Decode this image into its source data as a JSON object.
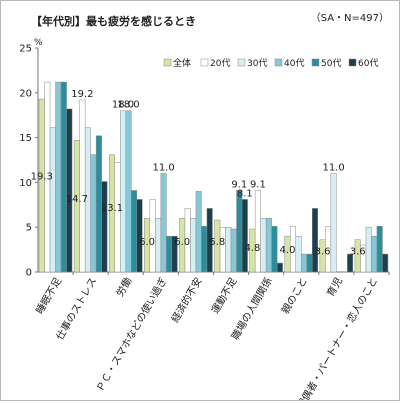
{
  "chart_data": {
    "type": "bar",
    "title": "【年代別】最も疲労を感じるとき",
    "note": "（SA・N=497）",
    "ylabel": "%",
    "ylim": [
      0,
      25
    ],
    "yticks": [
      0,
      5,
      10,
      15,
      20,
      25
    ],
    "grid": false,
    "legend": "top-right",
    "categories": [
      "睡眠不足",
      "仕事のストレス",
      "労働",
      "ＰＣ・スマホなどの使い過ぎ",
      "経済的不安",
      "運動不足",
      "職場の人間関係",
      "親のこと",
      "育児",
      "配偶者・パートナー・恋人のこと"
    ],
    "series": [
      {
        "name": "全体",
        "color": "#d7e4a6",
        "values": [
          19.3,
          14.7,
          13.1,
          6.0,
          6.0,
          5.8,
          4.8,
          4.0,
          3.6,
          3.6
        ]
      },
      {
        "name": "20代",
        "color": "#ffffff",
        "values": [
          21.2,
          19.2,
          12.2,
          8.1,
          7.1,
          5.0,
          9.1,
          5.1,
          5.1,
          3.0
        ]
      },
      {
        "name": "30代",
        "color": "#d6eef4",
        "values": [
          16.1,
          16.1,
          18.0,
          6.0,
          6.0,
          5.0,
          6.0,
          4.0,
          11.0,
          5.0
        ]
      },
      {
        "name": "40代",
        "color": "#86c8d6",
        "values": [
          21.2,
          13.1,
          18.0,
          11.0,
          9.0,
          4.8,
          6.0,
          2.0,
          0.0,
          4.0
        ]
      },
      {
        "name": "50代",
        "color": "#2b8e9c",
        "values": [
          21.2,
          15.2,
          9.1,
          4.0,
          5.1,
          9.1,
          5.1,
          2.0,
          0.0,
          5.1
        ]
      },
      {
        "name": "60代",
        "color": "#1b3f4c",
        "values": [
          18.2,
          10.1,
          8.1,
          4.0,
          7.1,
          8.1,
          1.0,
          7.1,
          2.0,
          2.0
        ]
      }
    ],
    "data_labels": [
      {
        "category": 0,
        "series": 0,
        "text": "19.3",
        "at": 10.0
      },
      {
        "category": 1,
        "series": 0,
        "text": "14.7",
        "at": 7.5
      },
      {
        "category": 2,
        "series": 0,
        "text": "13.1",
        "at": 6.5
      },
      {
        "category": 3,
        "series": 0,
        "text": "6.0",
        "at": 2.7
      },
      {
        "category": 4,
        "series": 0,
        "text": "6.0",
        "at": 2.7
      },
      {
        "category": 5,
        "series": 0,
        "text": "5.8",
        "at": 2.7
      },
      {
        "category": 6,
        "series": 0,
        "text": "4.8",
        "at": 2.0
      },
      {
        "category": 7,
        "series": 0,
        "text": "4.0",
        "at": 1.8
      },
      {
        "category": 8,
        "series": 0,
        "text": "3.6",
        "at": 1.6
      },
      {
        "category": 9,
        "series": 0,
        "text": "3.6",
        "at": 1.6
      },
      {
        "category": 1,
        "series": 1,
        "text": "19.2",
        "at": 19.2
      },
      {
        "category": 2,
        "series": 2,
        "text": "18.0",
        "at": 18.0
      },
      {
        "category": 2,
        "series": 3,
        "text": "18.0",
        "at": 18.0
      },
      {
        "category": 3,
        "series": 3,
        "text": "11.0",
        "at": 11.0
      },
      {
        "category": 5,
        "series": 4,
        "text": "9.1",
        "at": 9.1
      },
      {
        "category": 5,
        "series": 5,
        "text": "8.1",
        "at": 8.1
      },
      {
        "category": 6,
        "series": 1,
        "text": "9.1",
        "at": 9.1
      },
      {
        "category": 8,
        "series": 2,
        "text": "11.0",
        "at": 11.0
      }
    ]
  }
}
